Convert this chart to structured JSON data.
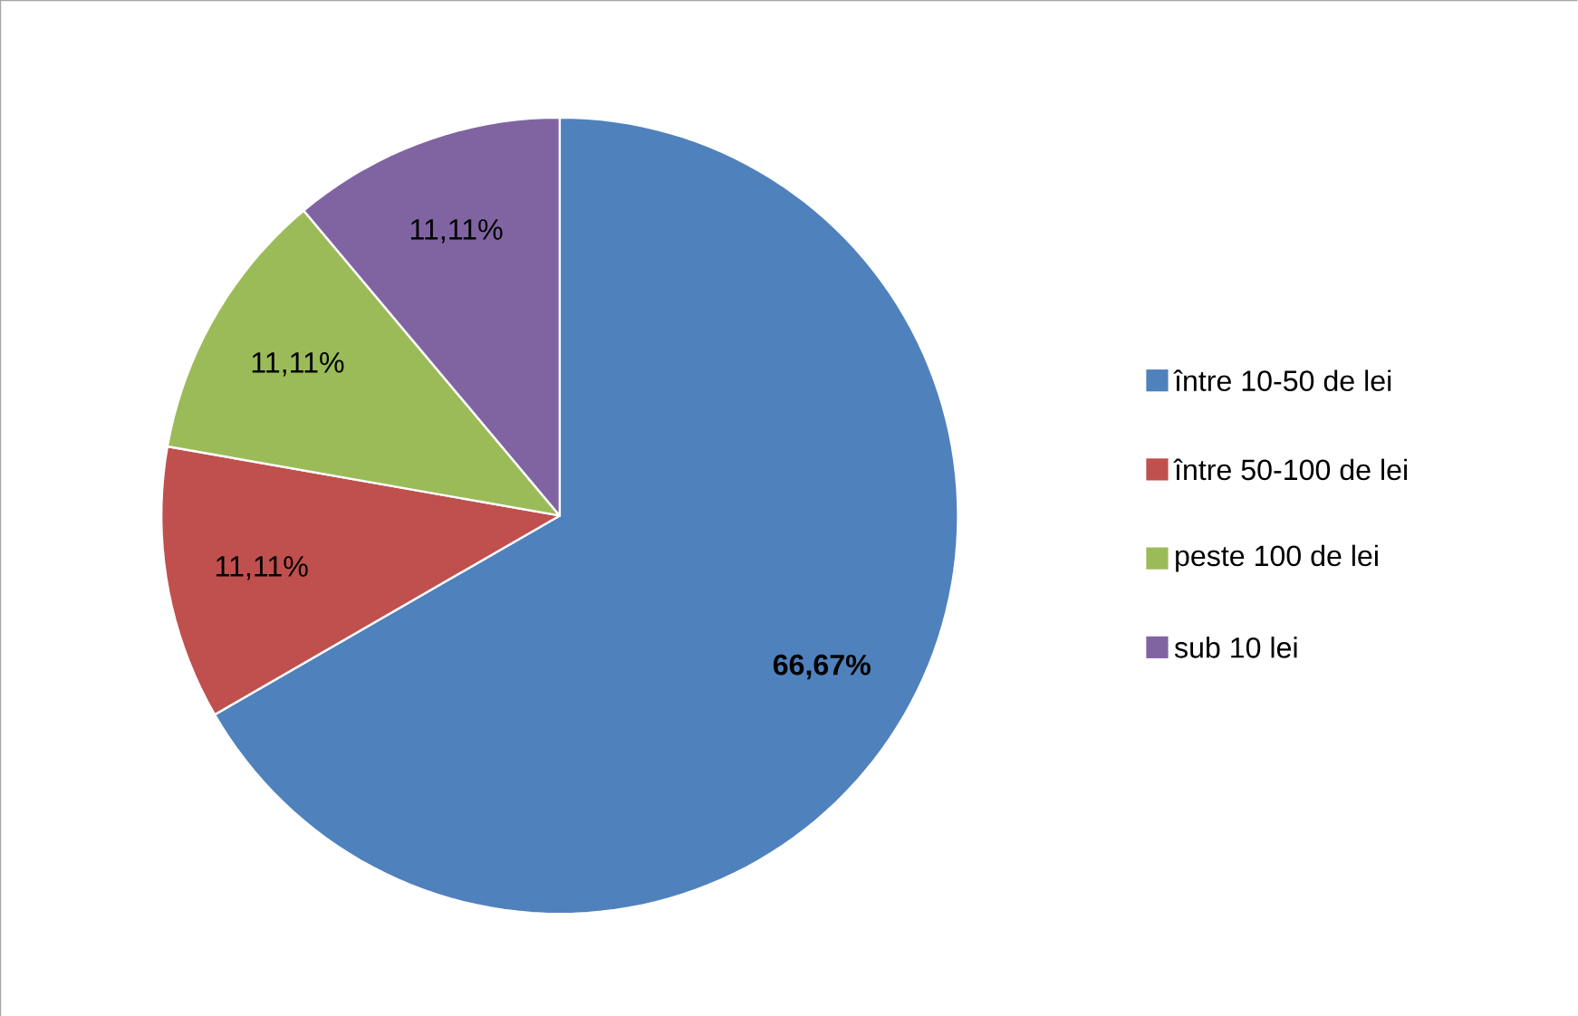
{
  "chart_data": {
    "type": "pie",
    "categories": [
      "între 10-50 de lei",
      "între 50-100 de lei",
      "peste 100 de lei",
      "sub 10 lei"
    ],
    "values": [
      66.67,
      11.11,
      11.11,
      11.11
    ],
    "colors": [
      "#4f81bd",
      "#c0504d",
      "#9bbb59",
      "#8064a2"
    ],
    "value_labels": [
      "**66,67%**",
      "11,11%",
      "11,11%",
      "11,11%"
    ],
    "legend": "right"
  }
}
